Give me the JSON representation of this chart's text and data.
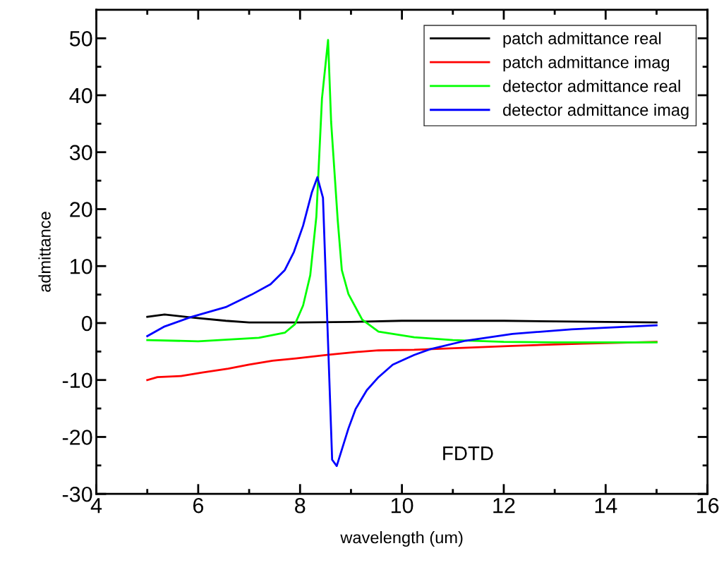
{
  "chart_data": {
    "type": "line",
    "xlabel": "wavelength (um)",
    "ylabel": "admittance",
    "xlim": [
      4,
      16
    ],
    "xticks": [
      4,
      6,
      8,
      10,
      12,
      14,
      16
    ],
    "ylim": [
      -30,
      55
    ],
    "yticks": [
      -30,
      -20,
      -10,
      0,
      10,
      20,
      30,
      40,
      50
    ],
    "grid": false,
    "legend": "top right",
    "marker": "none",
    "line_style": "solid",
    "annotations": [
      "FDTD"
    ],
    "series": [
      {
        "name": "patch admittance real",
        "color": "#000000",
        "x": [
          5.0,
          5.34,
          5.84,
          6.54,
          7.0,
          8.0,
          9.0,
          10.0,
          12.0,
          13.0,
          15.0
        ],
        "values": [
          1.1,
          1.5,
          1.0,
          0.4,
          0.1,
          0.1,
          0.2,
          0.4,
          0.4,
          0.3,
          0.1
        ]
      },
      {
        "name": "patch admittance imag",
        "color": "#ff0000",
        "x": [
          5.0,
          5.2,
          5.66,
          6.08,
          6.59,
          7.0,
          7.46,
          7.92,
          8.53,
          9.09,
          9.54,
          10.24,
          12.17,
          13.56,
          15.0
        ],
        "values": [
          -10.0,
          -9.5,
          -9.3,
          -8.7,
          -8.0,
          -7.3,
          -6.6,
          -6.2,
          -5.6,
          -5.1,
          -4.8,
          -4.7,
          -4.0,
          -3.6,
          -3.3
        ]
      },
      {
        "name": "detector admittance real",
        "color": "#00ff00",
        "x": [
          5.0,
          6.0,
          7.19,
          7.7,
          7.9,
          8.06,
          8.2,
          8.32,
          8.43,
          8.55,
          8.61,
          8.74,
          8.82,
          8.95,
          9.22,
          9.54,
          10.24,
          11.0,
          12.0,
          13.0,
          15.0
        ],
        "values": [
          -3.0,
          -3.2,
          -2.6,
          -1.7,
          -0.2,
          3.1,
          8.4,
          18.7,
          39.4,
          49.7,
          35.3,
          18.0,
          9.3,
          5.1,
          0.6,
          -1.5,
          -2.5,
          -3.0,
          -3.3,
          -3.4,
          -3.4
        ]
      },
      {
        "name": "detector admittance imag",
        "color": "#0000ff",
        "x": [
          5.0,
          5.34,
          5.84,
          6.54,
          7.05,
          7.42,
          7.7,
          7.88,
          8.06,
          8.23,
          8.34,
          8.45,
          8.63,
          8.72,
          8.95,
          9.09,
          9.31,
          9.54,
          9.82,
          10.24,
          10.55,
          11.25,
          12.17,
          13.33,
          15.0
        ],
        "values": [
          -2.3,
          -0.6,
          1.0,
          2.8,
          5.0,
          6.8,
          9.3,
          12.5,
          17.1,
          22.9,
          25.6,
          22.0,
          -24.0,
          -25.1,
          -18.5,
          -15.1,
          -11.8,
          -9.5,
          -7.3,
          -5.6,
          -4.6,
          -3.1,
          -1.9,
          -1.1,
          -0.4
        ]
      }
    ]
  }
}
